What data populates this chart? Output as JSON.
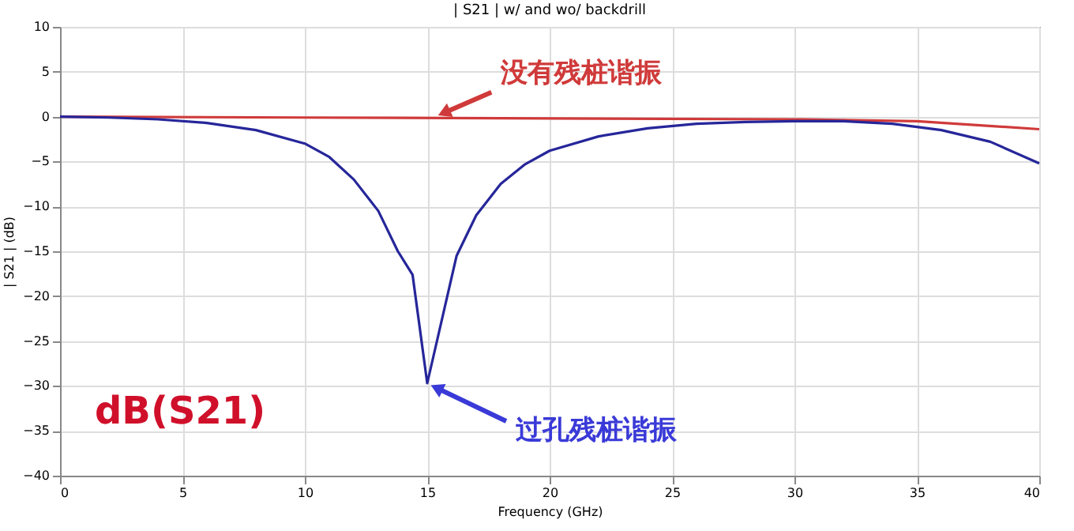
{
  "chart_data": {
    "type": "line",
    "title": "| S21 | w/ and wo/ backdrill",
    "xlabel": "Frequency (GHz)",
    "ylabel": "| S21 | (dB)",
    "xlim": [
      0,
      40
    ],
    "xticks": [
      0,
      5,
      10,
      15,
      20,
      25,
      30,
      35,
      40
    ],
    "ylim": [
      -40,
      10
    ],
    "yticks": [
      -40,
      -35,
      -30,
      -25,
      -20,
      -15,
      -10,
      -5,
      0,
      5,
      10
    ],
    "grid": true,
    "marker": "none",
    "line_style": "solid",
    "series": [
      {
        "color": "#d03a3a",
        "x": [
          0,
          10,
          20,
          30,
          35,
          40
        ],
        "values": [
          0,
          -0.1,
          -0.2,
          -0.3,
          -0.5,
          -1.4
        ]
      },
      {
        "color": "#26269a",
        "x": [
          0,
          2,
          4,
          6,
          8,
          10,
          11,
          12,
          13,
          13.8,
          14.4,
          15,
          16.2,
          17,
          18,
          19,
          20,
          22,
          24,
          26,
          28,
          30,
          32,
          34,
          36,
          38,
          40
        ],
        "values": [
          0,
          -0.1,
          -0.3,
          -0.7,
          -1.5,
          -3,
          -4.5,
          -7,
          -10.5,
          -15,
          -17.6,
          -29.7,
          -15.5,
          -11,
          -7.5,
          -5.3,
          -3.8,
          -2.2,
          -1.3,
          -0.8,
          -0.6,
          -0.5,
          -0.5,
          -0.8,
          -1.5,
          -2.8,
          -5.2
        ]
      }
    ],
    "annotations": [
      {
        "text": "没有残桩谐振",
        "x": 15.3,
        "y": -0.1
      },
      {
        "text": "过孔残桩谐振",
        "x": 15,
        "y": -29.7
      },
      "dB(S21)"
    ]
  }
}
